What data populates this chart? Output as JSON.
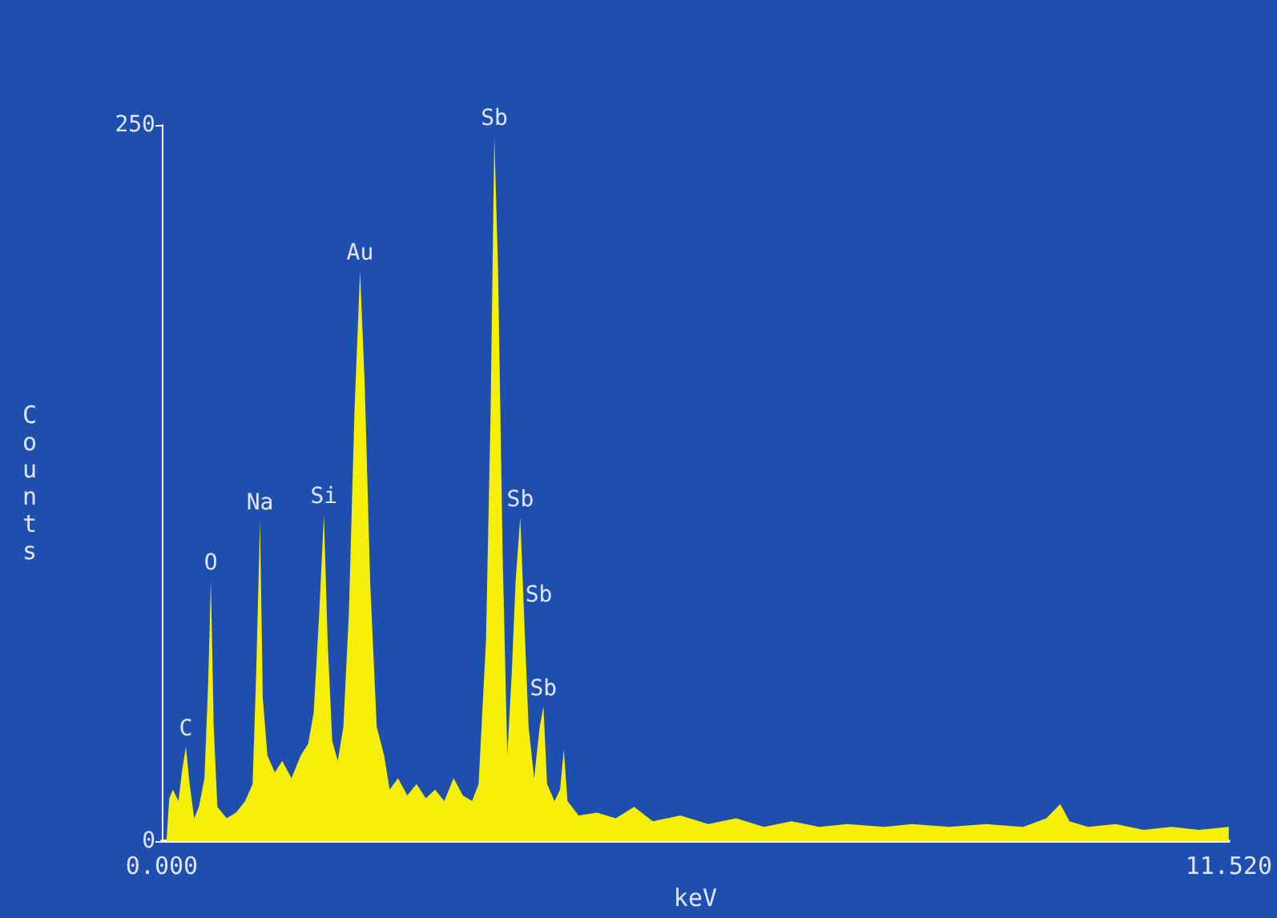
{
  "chart_data": {
    "type": "area",
    "xlabel": "keV",
    "ylabel": "Counts",
    "x": [
      0.05,
      0.08,
      0.12,
      0.18,
      0.22,
      0.26,
      0.3,
      0.35,
      0.4,
      0.46,
      0.5,
      0.53,
      0.56,
      0.6,
      0.7,
      0.8,
      0.9,
      0.98,
      1.02,
      1.06,
      1.09,
      1.14,
      1.22,
      1.3,
      1.4,
      1.5,
      1.58,
      1.64,
      1.7,
      1.75,
      1.79,
      1.84,
      1.9,
      1.96,
      2.02,
      2.08,
      2.14,
      2.19,
      2.25,
      2.32,
      2.4,
      2.46,
      2.55,
      2.65,
      2.75,
      2.85,
      2.95,
      3.05,
      3.15,
      3.25,
      3.35,
      3.42,
      3.5,
      3.55,
      3.59,
      3.63,
      3.68,
      3.73,
      3.78,
      3.82,
      3.87,
      3.91,
      3.96,
      4.02,
      4.08,
      4.12,
      4.16,
      4.24,
      4.3,
      4.34,
      4.38,
      4.5,
      4.7,
      4.9,
      5.1,
      5.3,
      5.6,
      5.9,
      6.2,
      6.5,
      6.8,
      7.1,
      7.4,
      7.8,
      8.1,
      8.5,
      8.9,
      9.3,
      9.55,
      9.7,
      9.8,
      10.0,
      10.3,
      10.6,
      10.9,
      11.2,
      11.52
    ],
    "series": [
      {
        "color": "#f5ef0a",
        "values": [
          0,
          15,
          18,
          14,
          25,
          33,
          20,
          8,
          12,
          22,
          55,
          91,
          40,
          12,
          8,
          10,
          14,
          20,
          60,
          112,
          50,
          30,
          24,
          28,
          22,
          30,
          34,
          45,
          80,
          114,
          70,
          35,
          28,
          40,
          80,
          150,
          199,
          160,
          90,
          40,
          30,
          18,
          22,
          16,
          20,
          15,
          18,
          14,
          22,
          16,
          14,
          20,
          70,
          150,
          246,
          200,
          100,
          30,
          60,
          91,
          113,
          80,
          40,
          22,
          40,
          47,
          20,
          14,
          18,
          32,
          14,
          9,
          10,
          8,
          12,
          7,
          9,
          6,
          8,
          5,
          7,
          5,
          6,
          5,
          6,
          5,
          6,
          5,
          8,
          13,
          7,
          5,
          6,
          4,
          5,
          4,
          5
        ]
      }
    ],
    "xlim": [
      0,
      11.52
    ],
    "xticks": [
      {
        "value": 0,
        "label": "0.000"
      },
      {
        "value": 11.52,
        "label": "11.520"
      }
    ],
    "ylim": [
      0,
      250
    ],
    "yticks": [
      0,
      250
    ],
    "marker": "none",
    "annotations": [
      {
        "text": "C",
        "x": 0.26,
        "y": 33
      },
      {
        "text": "O",
        "x": 0.53,
        "y": 91
      },
      {
        "text": "Na",
        "x": 1.06,
        "y": 112
      },
      {
        "text": "Si",
        "x": 1.75,
        "y": 114
      },
      {
        "text": "Au",
        "x": 2.14,
        "y": 199
      },
      {
        "text": "Sb",
        "x": 3.59,
        "y": 246
      },
      {
        "text": "Sb",
        "x": 3.87,
        "y": 113
      },
      {
        "text": "Sb",
        "x": 3.82,
        "y": 91
      },
      {
        "text": "Sb",
        "x": 4.12,
        "y": 47
      }
    ]
  }
}
